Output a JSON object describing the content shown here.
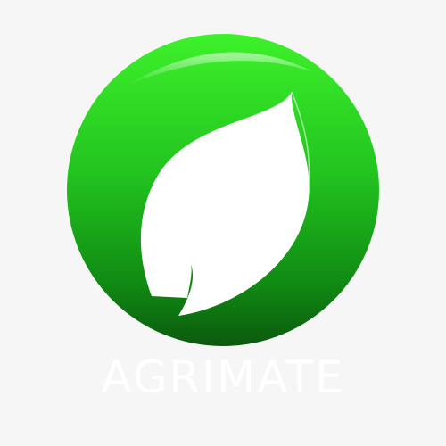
{
  "logo": {
    "wordmark": "AGRIMATE",
    "mark_icon": "leaf-in-circle-icon",
    "colors": {
      "background": "#f6f6f6",
      "circle_top": "#3ef12a",
      "circle_mid": "#1fba1d",
      "circle_bottom": "#0b5a0d",
      "leaf": "#ffffff",
      "wordmark": "#ffffff"
    }
  }
}
